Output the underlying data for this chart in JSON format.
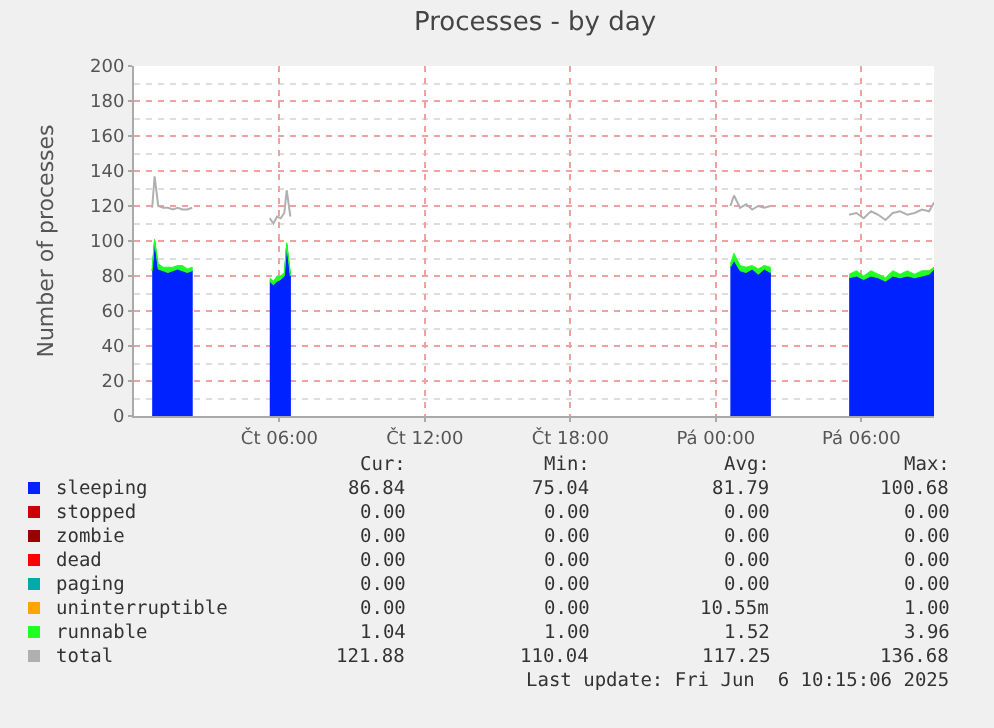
{
  "chart_data": {
    "type": "area",
    "title": "Processes - by day",
    "ylabel": "Number of processes",
    "stacked": true,
    "grid": true,
    "legend": "bottom",
    "x": [
      "2025-06-05T00:45",
      "2025-06-05T00:51",
      "2025-06-05T01:00",
      "2025-06-05T01:12",
      "2025-06-05T01:24",
      "2025-06-05T01:36",
      "2025-06-05T01:48",
      "2025-06-05T02:00",
      "2025-06-05T02:12",
      "2025-06-05T02:24",
      "2025-06-05T02:27",
      "2025-06-05T05:36",
      "2025-06-05T05:45",
      "2025-06-05T05:54",
      "2025-06-05T06:03",
      "2025-06-05T06:12",
      "2025-06-05T06:18",
      "2025-06-05T06:27",
      "2025-06-05T06:30",
      "2025-06-06T00:36",
      "2025-06-06T00:45",
      "2025-06-06T01:00",
      "2025-06-06T01:15",
      "2025-06-06T01:30",
      "2025-06-06T01:45",
      "2025-06-06T02:00",
      "2025-06-06T02:15",
      "2025-06-06T02:18",
      "2025-06-06T05:30",
      "2025-06-06T05:48",
      "2025-06-06T06:06",
      "2025-06-06T06:24",
      "2025-06-06T06:42",
      "2025-06-06T07:00",
      "2025-06-06T07:18",
      "2025-06-06T07:36",
      "2025-06-06T07:54",
      "2025-06-06T08:12",
      "2025-06-06T08:30",
      "2025-06-06T08:48",
      "2025-06-06T09:00"
    ],
    "xlim": [
      "2025-06-05T00:00",
      "2025-06-06T09:00"
    ],
    "xticks": [
      {
        "value": "2025-06-05T06:00",
        "label": "Čt 06:00"
      },
      {
        "value": "2025-06-05T12:00",
        "label": "Čt 12:00"
      },
      {
        "value": "2025-06-05T18:00",
        "label": "Čt 18:00"
      },
      {
        "value": "2025-06-06T00:00",
        "label": "Pá 00:00"
      },
      {
        "value": "2025-06-06T06:00",
        "label": "Pá 06:00"
      }
    ],
    "ylim": [
      0,
      200
    ],
    "yticks": [
      0,
      20,
      40,
      60,
      80,
      100,
      120,
      140,
      160,
      180,
      200
    ],
    "series": [
      {
        "name": "sleeping",
        "color": "#0022ff",
        "values": [
          83,
          100,
          84,
          83,
          82,
          83,
          84,
          83,
          82,
          83,
          null,
          77,
          75,
          77,
          78,
          80,
          98,
          80,
          null,
          85,
          89,
          83,
          82,
          84,
          81,
          84,
          82,
          null,
          79,
          80,
          78,
          80,
          79,
          77,
          80,
          79,
          80,
          79,
          80,
          81,
          84
        ]
      },
      {
        "name": "stopped",
        "color": "#cc0000",
        "values": [
          null,
          null,
          null,
          null,
          null,
          null,
          null,
          null,
          null,
          null,
          null,
          null,
          null,
          null,
          null,
          null,
          null,
          null,
          null,
          null,
          null,
          null,
          null,
          null,
          null,
          null,
          null,
          null,
          null,
          null,
          null,
          null,
          null,
          null,
          null,
          null,
          null,
          null,
          null,
          null,
          null
        ]
      },
      {
        "name": "zombie",
        "color": "#990000",
        "values": [
          null,
          null,
          null,
          null,
          null,
          null,
          null,
          null,
          null,
          null,
          null,
          null,
          null,
          null,
          null,
          null,
          null,
          null,
          null,
          null,
          null,
          null,
          null,
          null,
          null,
          null,
          null,
          null,
          null,
          null,
          null,
          null,
          null,
          null,
          null,
          null,
          null,
          null,
          null,
          null,
          null
        ]
      },
      {
        "name": "dead",
        "color": "#ff0000",
        "values": [
          null,
          null,
          null,
          null,
          null,
          null,
          null,
          null,
          null,
          null,
          null,
          null,
          null,
          null,
          null,
          null,
          null,
          null,
          null,
          null,
          null,
          null,
          null,
          null,
          null,
          null,
          null,
          null,
          null,
          null,
          null,
          null,
          null,
          null,
          null,
          null,
          null,
          null,
          null,
          null,
          null
        ]
      },
      {
        "name": "paging",
        "color": "#00aaaa",
        "values": [
          null,
          null,
          null,
          null,
          null,
          null,
          null,
          null,
          null,
          null,
          null,
          null,
          null,
          null,
          null,
          null,
          null,
          null,
          null,
          null,
          null,
          null,
          null,
          null,
          null,
          null,
          null,
          null,
          null,
          null,
          null,
          null,
          null,
          null,
          null,
          null,
          null,
          null,
          null,
          null,
          null
        ]
      },
      {
        "name": "uninterruptible",
        "color": "#ffa500",
        "values": [
          null,
          null,
          null,
          null,
          null,
          null,
          null,
          null,
          null,
          null,
          null,
          null,
          null,
          null,
          null,
          null,
          null,
          null,
          null,
          null,
          null,
          null,
          null,
          null,
          null,
          null,
          null,
          null,
          null,
          null,
          null,
          null,
          null,
          null,
          null,
          null,
          null,
          null,
          null,
          null,
          null
        ]
      },
      {
        "name": "runnable",
        "color": "#22ff22",
        "values": [
          2,
          1,
          3,
          2,
          3,
          2,
          2,
          3,
          2,
          2,
          null,
          2,
          2,
          3,
          2,
          2,
          1,
          2,
          null,
          2,
          4,
          3,
          3,
          2,
          3,
          2,
          3,
          null,
          2,
          3,
          2,
          3,
          2,
          2,
          3,
          2,
          3,
          2,
          3,
          2,
          1
        ]
      },
      {
        "name": "total",
        "type": "line",
        "color": "#b0b0b0",
        "values": [
          119,
          137,
          120,
          119,
          119,
          118,
          119,
          118,
          118,
          119,
          null,
          113,
          110,
          114,
          113,
          116,
          129,
          114,
          null,
          120,
          126,
          119,
          121,
          118,
          120,
          119,
          120,
          null,
          115,
          116,
          113,
          117,
          115,
          112,
          116,
          117,
          115,
          116,
          118,
          117,
          122
        ]
      }
    ],
    "annotations": [
      "Cur:",
      "Min:",
      "Avg:",
      "Max:",
      "86.84",
      "75.04",
      "81.79",
      "100.68",
      "0.00",
      "0.00",
      "0.00",
      "0.00",
      "0.00",
      "0.00",
      "0.00",
      "0.00",
      "0.00",
      "0.00",
      "0.00",
      "0.00",
      "0.00",
      "0.00",
      "0.00",
      "0.00",
      "0.00",
      "0.00",
      "10.55m",
      "1.00",
      "1.04",
      "1.00",
      "1.52",
      "3.96",
      "121.88",
      "110.04",
      "117.25",
      "136.68",
      "Last update: Fri Jun  6 10:15:06 2025"
    ]
  }
}
